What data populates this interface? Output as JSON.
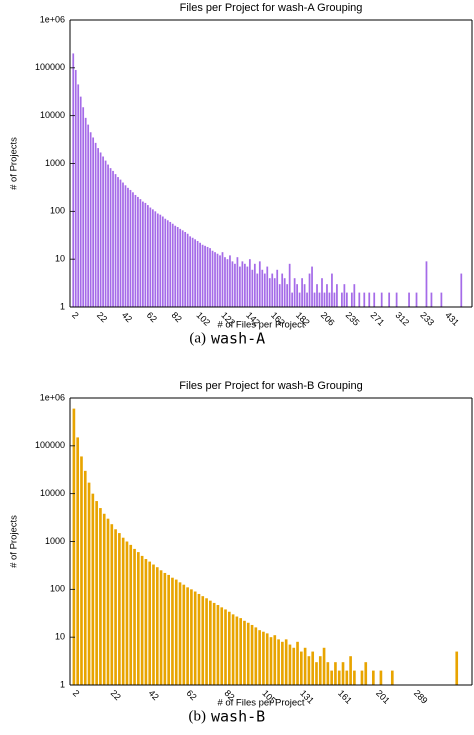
{
  "chart_data": [
    {
      "type": "bar",
      "title": "Files per Project for wash-A Grouping",
      "x_label": "# of Files per Project",
      "y_label": "# of Projects",
      "caption_label": "(a)",
      "caption": "wash-A",
      "color": "#a56be8",
      "log_y": true,
      "ylim": [
        1,
        1000000
      ],
      "yticks": [
        1,
        10,
        100,
        1000,
        10000,
        100000,
        {
          "value": 1000000,
          "label": "1e+06"
        }
      ],
      "categories": [
        "2",
        null,
        null,
        null,
        null,
        null,
        null,
        null,
        null,
        null,
        "22",
        null,
        null,
        null,
        null,
        null,
        null,
        null,
        null,
        null,
        "42",
        null,
        null,
        null,
        null,
        null,
        null,
        null,
        null,
        null,
        "62",
        null,
        null,
        null,
        null,
        null,
        null,
        null,
        null,
        null,
        "82",
        null,
        null,
        null,
        null,
        null,
        null,
        null,
        null,
        null,
        "102",
        null,
        null,
        null,
        null,
        null,
        null,
        null,
        null,
        null,
        "122",
        null,
        null,
        null,
        null,
        null,
        null,
        null,
        null,
        null,
        "142",
        null,
        null,
        null,
        null,
        null,
        null,
        null,
        null,
        null,
        "162",
        null,
        null,
        null,
        null,
        null,
        null,
        null,
        null,
        null,
        "182",
        null,
        null,
        null,
        null,
        null,
        null,
        null,
        null,
        null,
        "206",
        null,
        null,
        null,
        null,
        null,
        null,
        null,
        null,
        null,
        "235",
        null,
        null,
        null,
        null,
        null,
        null,
        null,
        null,
        null,
        "271",
        null,
        null,
        null,
        null,
        null,
        null,
        null,
        null,
        null,
        "312",
        null,
        null,
        null,
        null,
        null,
        null,
        null,
        null,
        null,
        "233",
        null,
        null,
        null,
        null,
        null,
        null,
        null,
        null,
        null,
        "431",
        null,
        null,
        null,
        null,
        null,
        null,
        null,
        null,
        null
      ],
      "values": [
        200000,
        90000,
        45000,
        25000,
        15000,
        9000,
        6500,
        4500,
        3500,
        2700,
        2100,
        1700,
        1400,
        1150,
        950,
        800,
        700,
        600,
        520,
        460,
        400,
        350,
        310,
        280,
        250,
        220,
        200,
        180,
        160,
        150,
        135,
        120,
        110,
        100,
        90,
        85,
        78,
        70,
        65,
        60,
        55,
        50,
        47,
        43,
        40,
        37,
        34,
        30,
        28,
        26,
        24,
        22,
        20,
        19,
        18,
        17,
        15,
        14,
        13,
        12,
        14,
        11,
        10,
        12,
        9,
        8,
        11,
        7,
        9,
        8,
        7,
        10,
        6,
        8,
        5,
        9,
        6,
        5,
        7,
        4,
        5,
        4,
        6,
        3,
        5,
        4,
        3,
        8,
        2,
        4,
        3,
        2,
        4,
        3,
        2,
        5,
        7,
        2,
        3,
        2,
        4,
        2,
        3,
        2,
        5,
        2,
        3,
        1,
        2,
        3,
        2,
        1,
        2,
        3,
        1,
        2,
        1,
        2,
        1,
        2,
        1,
        2,
        1,
        1,
        2,
        1,
        1,
        2,
        1,
        1,
        2,
        1,
        1,
        1,
        1,
        2,
        1,
        1,
        2,
        1,
        1,
        1,
        9,
        1,
        2,
        1,
        1,
        1,
        2,
        1,
        1,
        1,
        1,
        1,
        1,
        1,
        5,
        1,
        1,
        1
      ]
    },
    {
      "type": "bar",
      "title": "Files per Project for wash-B Grouping",
      "x_label": "# of Files per Project",
      "y_label": "# of Projects",
      "caption_label": "(b)",
      "caption": "wash-B",
      "color": "#e8a400",
      "log_y": true,
      "ylim": [
        1,
        1000000
      ],
      "yticks": [
        1,
        10,
        100,
        1000,
        10000,
        100000,
        {
          "value": 1000000,
          "label": "1e+06"
        }
      ],
      "categories": [
        "2",
        null,
        null,
        null,
        null,
        null,
        null,
        null,
        null,
        null,
        "22",
        null,
        null,
        null,
        null,
        null,
        null,
        null,
        null,
        null,
        "42",
        null,
        null,
        null,
        null,
        null,
        null,
        null,
        null,
        null,
        "62",
        null,
        null,
        null,
        null,
        null,
        null,
        null,
        null,
        null,
        "82",
        null,
        null,
        null,
        null,
        null,
        null,
        null,
        null,
        null,
        "105",
        null,
        null,
        null,
        null,
        null,
        null,
        null,
        null,
        null,
        "131",
        null,
        null,
        null,
        null,
        null,
        null,
        null,
        null,
        null,
        "161",
        null,
        null,
        null,
        null,
        null,
        null,
        null,
        null,
        null,
        "201",
        null,
        null,
        null,
        null,
        null,
        null,
        null,
        null,
        null,
        "289",
        null,
        null,
        null,
        null,
        null,
        null,
        null,
        null,
        null,
        null,
        null,
        null,
        null,
        null
      ],
      "values": [
        600000,
        150000,
        60000,
        30000,
        17000,
        10000,
        7000,
        5000,
        3800,
        3000,
        2300,
        1800,
        1500,
        1200,
        1000,
        850,
        700,
        600,
        500,
        430,
        380,
        330,
        290,
        250,
        220,
        200,
        175,
        160,
        140,
        125,
        110,
        100,
        90,
        80,
        72,
        65,
        58,
        52,
        47,
        42,
        38,
        34,
        30,
        27,
        25,
        22,
        20,
        18,
        16,
        14,
        13,
        12,
        10,
        11,
        9,
        8,
        9,
        7,
        6,
        8,
        5,
        6,
        4,
        5,
        3,
        4,
        6,
        3,
        2,
        3,
        2,
        3,
        2,
        4,
        2,
        1,
        2,
        3,
        1,
        2,
        1,
        2,
        1,
        1,
        2,
        1,
        1,
        1,
        1,
        1,
        1,
        1,
        1,
        1,
        1,
        1,
        1,
        1,
        1,
        1,
        1,
        5,
        1,
        1,
        1
      ]
    }
  ]
}
